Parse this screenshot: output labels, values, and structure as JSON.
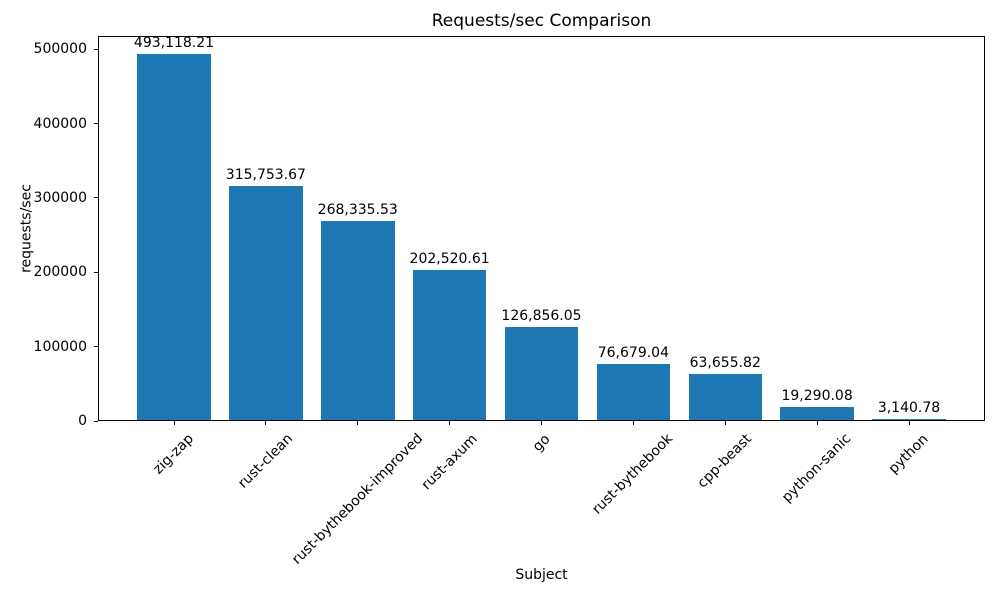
{
  "chart_data": {
    "type": "bar",
    "title": "Requests/sec Comparison",
    "xlabel": "Subject",
    "ylabel": "requests/sec",
    "categories": [
      "zig-zap",
      "rust-clean",
      "rust-bythebook-improved",
      "rust-axum",
      "go",
      "rust-bythebook",
      "cpp-beast",
      "python-sanic",
      "python"
    ],
    "values": [
      493118.21,
      315753.67,
      268335.53,
      202520.61,
      126856.05,
      76679.04,
      63655.82,
      19290.08,
      3140.78
    ],
    "value_labels": [
      "493,118.21",
      "315,753.67",
      "268,335.53",
      "202,520.61",
      "126,856.05",
      "76,679.04",
      "63,655.82",
      "19,290.08",
      "3,140.78"
    ],
    "yticks": [
      0,
      100000,
      200000,
      300000,
      400000,
      500000
    ],
    "ytick_labels": [
      "0",
      "100000",
      "200000",
      "300000",
      "400000",
      "500000"
    ],
    "ylim": [
      0,
      517774
    ],
    "bar_color": "#1f77b4",
    "x_tick_rotation_deg": 45,
    "grid": false,
    "legend": null
  }
}
